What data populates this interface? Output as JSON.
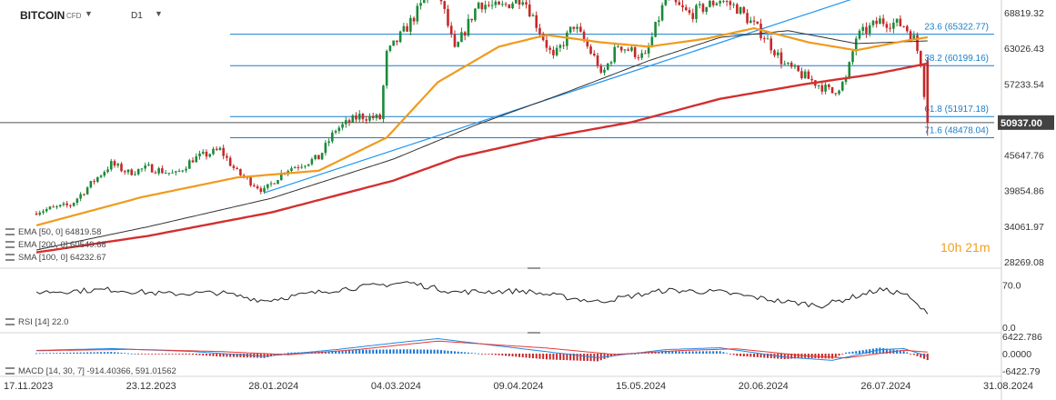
{
  "header": {
    "symbol": "BITCOIN",
    "symbol_type": "CFD",
    "timeframe": "D1"
  },
  "timer": "10h 21m",
  "indicators": {
    "ema50": "EMA [50, 0]  64819.58",
    "ema200": "EMA [200, 0]  60549.68",
    "sma100": "SMA [100, 0]  64232.67",
    "rsi": "RSI [14]  22.0",
    "macd": "MACD [14, 30, 7]  -914.40366,  591.01562"
  },
  "colors": {
    "up": "#1b8a3a",
    "down": "#c62828",
    "ema50": "#f09a1c",
    "ema200": "#d32f2f",
    "sma100": "#333333",
    "fib": "#1a7fc9",
    "trend": "#2196f3",
    "price_tag": "#424242"
  },
  "chart_data": [
    {
      "type": "candlestick",
      "title": "BITCOIN",
      "ylim": [
        28269.08,
        73000
      ],
      "y_ticks": [
        68819.32,
        63026.43,
        57233.54,
        51440.65,
        45647.76,
        39854.86,
        34061.97,
        28269.08
      ],
      "y_tick_labels": [
        "68819.32",
        "63026.43",
        "57233.54",
        "",
        "45647.76",
        "39854.86",
        "34061.97",
        "28269.08"
      ],
      "x_labels": [
        "17.11.2023",
        "23.12.2023",
        "28.01.2024",
        "04.03.2024",
        "09.04.2024",
        "15.05.2024",
        "20.06.2024",
        "26.07.2024",
        "31.08.2024"
      ],
      "current_price": 50937.0,
      "current_price_label": "50937.00",
      "fib_levels": [
        {
          "label": "23.6 (65322.77)",
          "value": 65322.77
        },
        {
          "label": "38.2 (60199.16)",
          "value": 60199.16
        },
        {
          "label": "61.8 (51917.18)",
          "value": 51917.18
        },
        {
          "label": "71.6 (48478.04)",
          "value": 48478.04
        }
      ],
      "top_level": 73800,
      "trendline": {
        "from": [
          "2024-01-23",
          39500
        ],
        "to": [
          "2024-07-29",
          73800
        ]
      },
      "anchors": {
        "close": [
          [
            "2023-11-17",
            36500
          ],
          [
            "2023-11-27",
            37500
          ],
          [
            "2023-12-04",
            41500
          ],
          [
            "2023-12-09",
            44200
          ],
          [
            "2023-12-14",
            42800
          ],
          [
            "2023-12-20",
            43600
          ],
          [
            "2023-12-28",
            42500
          ],
          [
            "2024-01-02",
            45000
          ],
          [
            "2024-01-10",
            46500
          ],
          [
            "2024-01-15",
            42800
          ],
          [
            "2024-01-23",
            39800
          ],
          [
            "2024-01-29",
            43200
          ],
          [
            "2024-02-08",
            45200
          ],
          [
            "2024-02-13",
            49800
          ],
          [
            "2024-02-20",
            52000
          ],
          [
            "2024-02-26",
            51600
          ],
          [
            "2024-02-28",
            62000
          ],
          [
            "2024-03-05",
            66500
          ],
          [
            "2024-03-11",
            71500
          ],
          [
            "2024-03-14",
            73000
          ],
          [
            "2024-03-19",
            62500
          ],
          [
            "2024-03-26",
            70500
          ],
          [
            "2024-04-01",
            69500
          ],
          [
            "2024-04-08",
            71500
          ],
          [
            "2024-04-12",
            67000
          ],
          [
            "2024-04-17",
            61300
          ],
          [
            "2024-04-23",
            66800
          ],
          [
            "2024-04-30",
            60600
          ],
          [
            "2024-05-01",
            58300
          ],
          [
            "2024-05-06",
            63600
          ],
          [
            "2024-05-14",
            61500
          ],
          [
            "2024-05-20",
            71200
          ],
          [
            "2024-05-27",
            68500
          ],
          [
            "2024-06-05",
            71000
          ],
          [
            "2024-06-10",
            69600
          ],
          [
            "2024-06-18",
            65000
          ],
          [
            "2024-06-24",
            60300
          ],
          [
            "2024-07-05",
            56800
          ],
          [
            "2024-07-08",
            55800
          ],
          [
            "2024-07-12",
            57800
          ],
          [
            "2024-07-15",
            64800
          ],
          [
            "2024-07-22",
            67500
          ],
          [
            "2024-07-29",
            66800
          ],
          [
            "2024-08-01",
            64600
          ],
          [
            "2024-08-03",
            60800
          ],
          [
            "2024-08-05",
            50937
          ]
        ],
        "ema50": [
          [
            "2023-11-17",
            34200
          ],
          [
            "2023-12-18",
            38800
          ],
          [
            "2024-01-15",
            42000
          ],
          [
            "2024-02-08",
            43100
          ],
          [
            "2024-02-28",
            48500
          ],
          [
            "2024-03-14",
            57500
          ],
          [
            "2024-04-01",
            63300
          ],
          [
            "2024-04-15",
            65200
          ],
          [
            "2024-05-01",
            64000
          ],
          [
            "2024-05-15",
            63300
          ],
          [
            "2024-06-01",
            64600
          ],
          [
            "2024-06-15",
            66300
          ],
          [
            "2024-07-01",
            64000
          ],
          [
            "2024-07-15",
            62700
          ],
          [
            "2024-07-29",
            64200
          ],
          [
            "2024-08-05",
            64820
          ]
        ],
        "ema200": [
          [
            "2023-11-17",
            29800
          ],
          [
            "2023-12-20",
            32500
          ],
          [
            "2024-01-25",
            36300
          ],
          [
            "2024-03-01",
            41500
          ],
          [
            "2024-03-20",
            45300
          ],
          [
            "2024-04-15",
            48500
          ],
          [
            "2024-05-10",
            51000
          ],
          [
            "2024-06-05",
            54800
          ],
          [
            "2024-06-30",
            57200
          ],
          [
            "2024-07-20",
            58800
          ],
          [
            "2024-08-05",
            60550
          ]
        ],
        "sma100": [
          [
            "2023-11-17",
            30200
          ],
          [
            "2023-12-20",
            34000
          ],
          [
            "2024-01-25",
            38600
          ],
          [
            "2024-03-01",
            45000
          ],
          [
            "2024-03-25",
            50500
          ],
          [
            "2024-04-20",
            55700
          ],
          [
            "2024-05-15",
            61000
          ],
          [
            "2024-06-05",
            64800
          ],
          [
            "2024-06-25",
            65900
          ],
          [
            "2024-07-15",
            63800
          ],
          [
            "2024-08-05",
            64230
          ]
        ]
      }
    },
    {
      "type": "line",
      "title": "RSI [14]",
      "ylim": [
        0,
        100
      ],
      "y_ticks": [
        70.0,
        0.0
      ],
      "y_tick_labels": [
        "70.0",
        "0.0"
      ],
      "current_value": 22.0,
      "anchors": [
        [
          "2023-11-17",
          58
        ],
        [
          "2023-12-09",
          62
        ],
        [
          "2023-12-25",
          55
        ],
        [
          "2024-01-10",
          57
        ],
        [
          "2024-01-23",
          44
        ],
        [
          "2024-02-13",
          62
        ],
        [
          "2024-03-05",
          74
        ],
        [
          "2024-03-19",
          58
        ],
        [
          "2024-04-08",
          60
        ],
        [
          "2024-04-30",
          42
        ],
        [
          "2024-05-20",
          61
        ],
        [
          "2024-06-05",
          58
        ],
        [
          "2024-06-24",
          42
        ],
        [
          "2024-07-05",
          36
        ],
        [
          "2024-07-22",
          62
        ],
        [
          "2024-07-29",
          56
        ],
        [
          "2024-08-05",
          22
        ]
      ]
    },
    {
      "type": "line",
      "title": "MACD [14, 30, 7]",
      "y_ticks": [
        6422.786,
        0.0,
        -6422.786
      ],
      "y_tick_labels": [
        "6422.786",
        "0.0000",
        "-6422.79"
      ],
      "macd_value": -914.40366,
      "signal_value": 591.01562,
      "macd_anchors": [
        [
          "2023-11-17",
          1200
        ],
        [
          "2023-12-09",
          1900
        ],
        [
          "2024-01-02",
          800
        ],
        [
          "2024-01-23",
          -1000
        ],
        [
          "2024-02-13",
          1500
        ],
        [
          "2024-03-05",
          4500
        ],
        [
          "2024-03-14",
          5600
        ],
        [
          "2024-04-08",
          1800
        ],
        [
          "2024-04-30",
          -1500
        ],
        [
          "2024-05-20",
          1500
        ],
        [
          "2024-06-05",
          2200
        ],
        [
          "2024-06-24",
          -1300
        ],
        [
          "2024-07-08",
          -2500
        ],
        [
          "2024-07-22",
          1500
        ],
        [
          "2024-07-29",
          1900
        ],
        [
          "2024-08-05",
          -914
        ]
      ],
      "signal_anchors": [
        [
          "2023-11-17",
          1100
        ],
        [
          "2023-12-15",
          1600
        ],
        [
          "2024-01-10",
          800
        ],
        [
          "2024-01-30",
          -400
        ],
        [
          "2024-02-20",
          1600
        ],
        [
          "2024-03-14",
          4700
        ],
        [
          "2024-04-15",
          2100
        ],
        [
          "2024-05-05",
          -300
        ],
        [
          "2024-05-25",
          1200
        ],
        [
          "2024-06-10",
          1800
        ],
        [
          "2024-06-30",
          -800
        ],
        [
          "2024-07-12",
          -1600
        ],
        [
          "2024-07-29",
          1300
        ],
        [
          "2024-08-05",
          591
        ]
      ]
    }
  ]
}
